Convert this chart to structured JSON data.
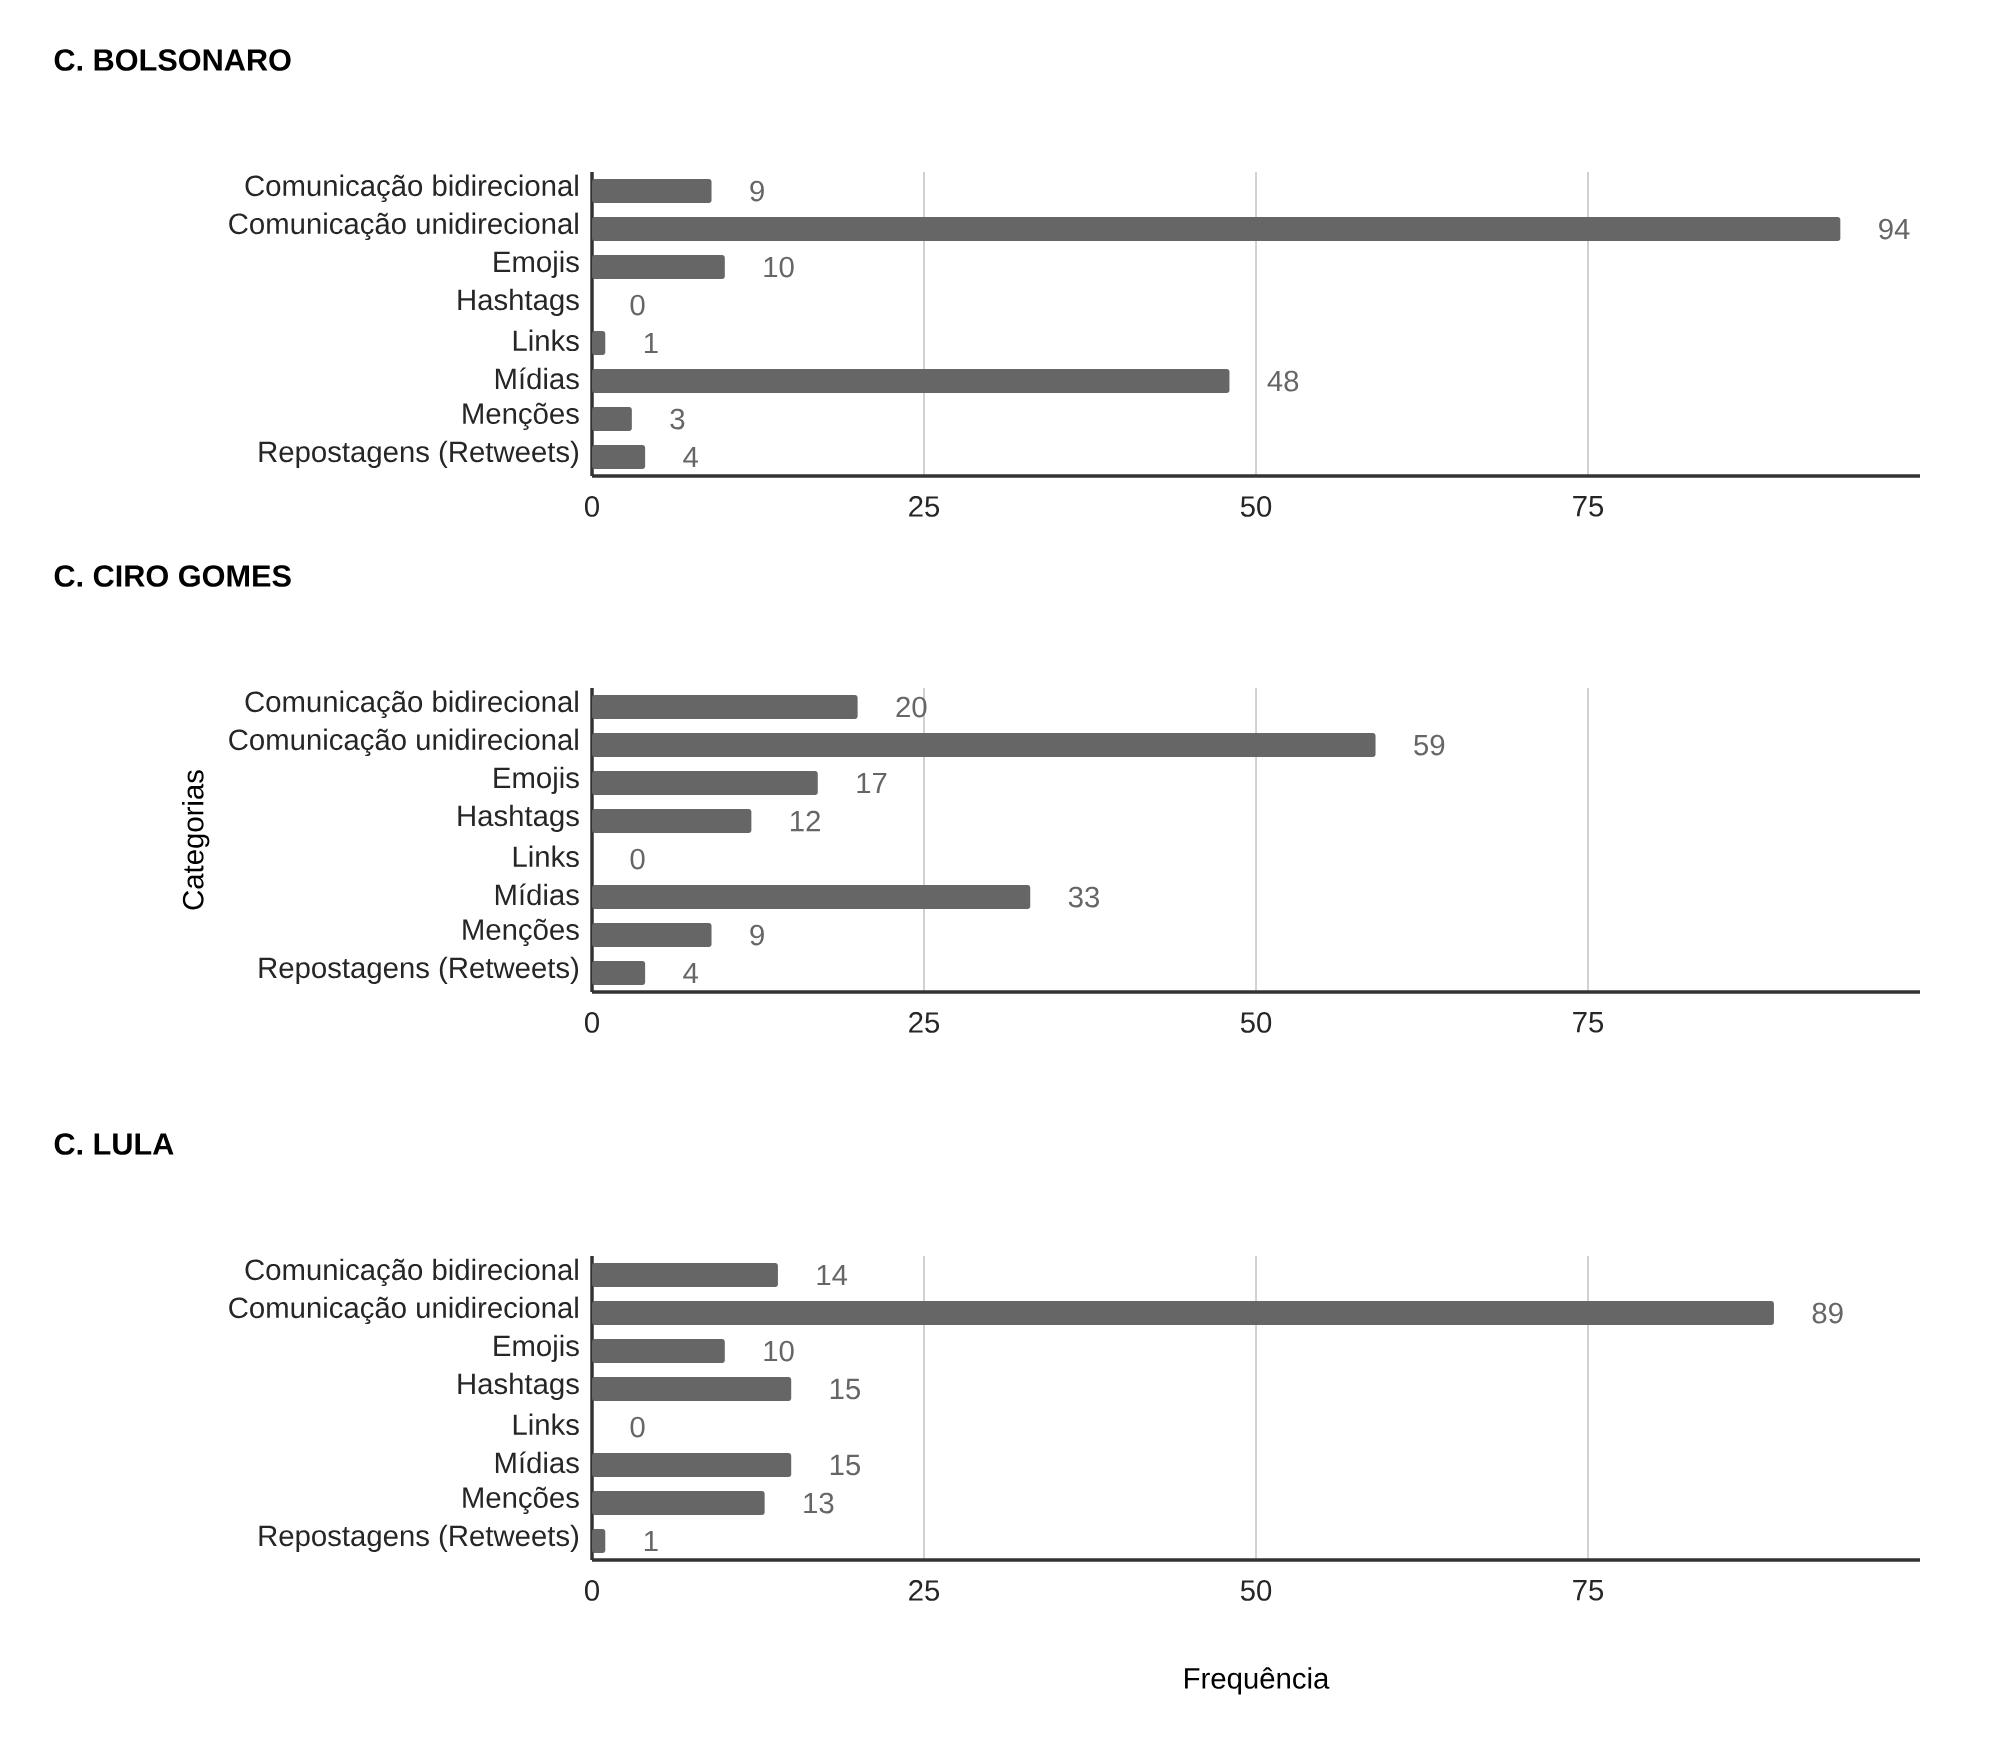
{
  "chart_data": [
    {
      "type": "bar",
      "orientation": "horizontal",
      "title": "C. BOLSONARO",
      "categories": [
        "Comunicação bidirecional",
        "Comunicação unidirecional",
        "Emojis",
        "Hashtags",
        "Links",
        "Mídias",
        "Menções",
        "Repostagens (Retweets)"
      ],
      "values": [
        9,
        94,
        10,
        0,
        1,
        48,
        3,
        4
      ],
      "color": "#666666",
      "xlim": [
        0,
        100
      ],
      "xticks": [
        0,
        25,
        50,
        75
      ],
      "grid": "x",
      "data_labels": true
    },
    {
      "type": "bar",
      "orientation": "horizontal",
      "title": "C. CIRO GOMES",
      "ylabel": "Categorias",
      "categories": [
        "Comunicação bidirecional",
        "Comunicação unidirecional",
        "Emojis",
        "Hashtags",
        "Links",
        "Mídias",
        "Menções",
        "Repostagens (Retweets)"
      ],
      "values": [
        20,
        59,
        17,
        12,
        0,
        33,
        9,
        4
      ],
      "color": "#666666",
      "xlim": [
        0,
        100
      ],
      "xticks": [
        0,
        25,
        50,
        75
      ],
      "grid": "x",
      "data_labels": true
    },
    {
      "type": "bar",
      "orientation": "horizontal",
      "title": "C. LULA",
      "xlabel": "Frequência",
      "categories": [
        "Comunicação bidirecional",
        "Comunicação unidirecional",
        "Emojis",
        "Hashtags",
        "Links",
        "Mídias",
        "Menções",
        "Repostagens (Retweets)"
      ],
      "values": [
        14,
        89,
        10,
        15,
        0,
        15,
        13,
        1
      ],
      "color": "#666666",
      "xlim": [
        0,
        100
      ],
      "xticks": [
        0,
        25,
        50,
        75
      ],
      "grid": "x",
      "data_labels": true
    }
  ]
}
